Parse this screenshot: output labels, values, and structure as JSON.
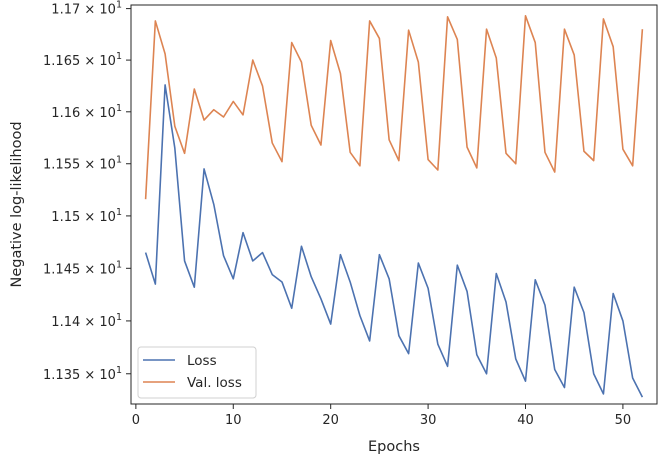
{
  "chart_data": {
    "type": "line",
    "title": "",
    "xlabel": "Epochs",
    "ylabel": "Negative log-likelihood",
    "yscale": "log",
    "xlim": [
      -0.5,
      53.5
    ],
    "ylim": [
      11.3215,
      11.7035
    ],
    "grid": false,
    "legend_position": "lower-left",
    "x_ticks": [
      0,
      10,
      20,
      30,
      40,
      50
    ],
    "x_tick_labels": [
      "0",
      "10",
      "20",
      "30",
      "40",
      "50"
    ],
    "y_ticks": [
      11.35,
      11.4,
      11.45,
      11.5,
      11.55,
      11.6,
      11.65,
      11.7
    ],
    "y_tick_labels": [
      {
        "mantissa": "1.135",
        "exp": "1"
      },
      {
        "mantissa": "1.14",
        "exp": "1"
      },
      {
        "mantissa": "1.145",
        "exp": "1"
      },
      {
        "mantissa": "1.15",
        "exp": "1"
      },
      {
        "mantissa": "1.155",
        "exp": "1"
      },
      {
        "mantissa": "1.16",
        "exp": "1"
      },
      {
        "mantissa": "1.165",
        "exp": "1"
      },
      {
        "mantissa": "1.17",
        "exp": "1"
      }
    ],
    "x": [
      1,
      2,
      3,
      4,
      5,
      6,
      7,
      8,
      9,
      10,
      11,
      12,
      13,
      14,
      15,
      16,
      17,
      18,
      19,
      20,
      21,
      22,
      23,
      24,
      25,
      26,
      27,
      28,
      29,
      30,
      31,
      32,
      33,
      34,
      35,
      36,
      37,
      38,
      39,
      40,
      41,
      42,
      43,
      44,
      45,
      46,
      47,
      48,
      49,
      50,
      51,
      52
    ],
    "series": [
      {
        "name": "Loss",
        "color": "#4c72b0",
        "values": [
          11.465,
          11.435,
          11.626,
          11.565,
          11.457,
          11.432,
          11.545,
          11.511,
          11.462,
          11.44,
          11.484,
          11.457,
          11.465,
          11.444,
          11.437,
          11.412,
          11.471,
          11.442,
          11.421,
          11.397,
          11.463,
          11.437,
          11.405,
          11.381,
          11.463,
          11.44,
          11.386,
          11.369,
          11.455,
          11.431,
          11.378,
          11.357,
          11.453,
          11.428,
          11.368,
          11.35,
          11.445,
          11.418,
          11.364,
          11.343,
          11.439,
          11.415,
          11.354,
          11.337,
          11.432,
          11.408,
          11.35,
          11.331,
          11.426,
          11.4,
          11.346,
          11.328
        ]
      },
      {
        "name": "Val. loss",
        "color": "#dd8452",
        "values": [
          11.516,
          11.688,
          11.656,
          11.586,
          11.56,
          11.622,
          11.592,
          11.602,
          11.595,
          11.61,
          11.597,
          11.65,
          11.625,
          11.57,
          11.552,
          11.667,
          11.648,
          11.587,
          11.568,
          11.669,
          11.637,
          11.561,
          11.548,
          11.688,
          11.671,
          11.573,
          11.553,
          11.679,
          11.648,
          11.554,
          11.544,
          11.692,
          11.67,
          11.566,
          11.546,
          11.68,
          11.652,
          11.56,
          11.55,
          11.693,
          11.667,
          11.561,
          11.542,
          11.68,
          11.655,
          11.562,
          11.553,
          11.69,
          11.663,
          11.564,
          11.548,
          11.68
        ]
      }
    ]
  }
}
